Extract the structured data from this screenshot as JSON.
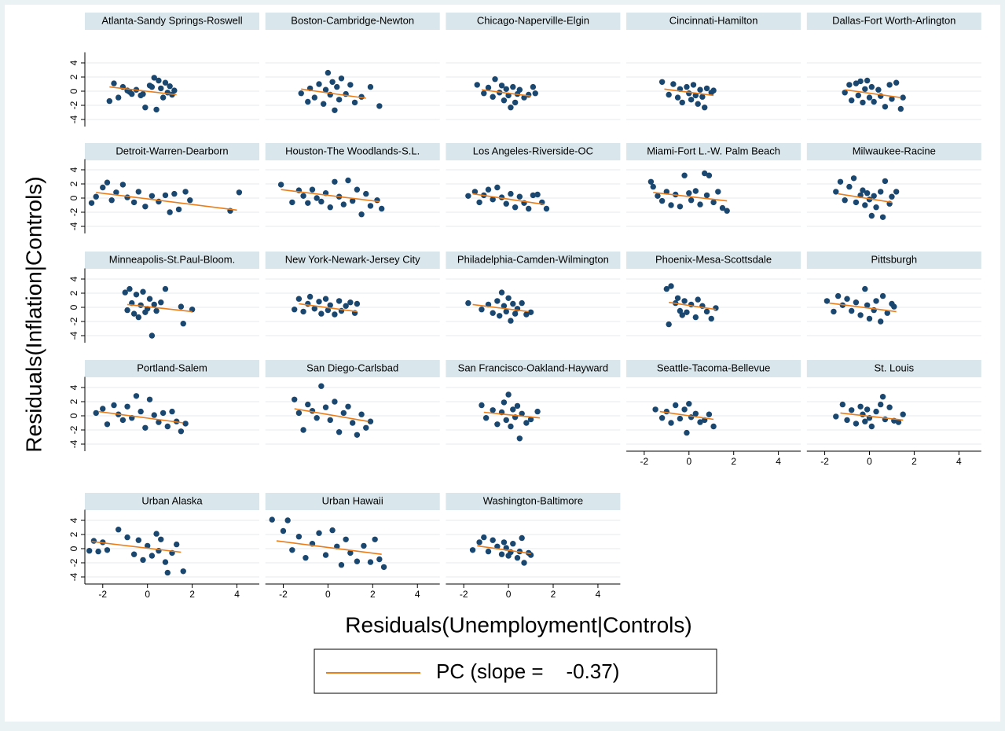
{
  "chart_data": {
    "type": "scatter",
    "ylabel": "Residuals(Inflation|Controls)",
    "xlabel": "Residuals(Unemployment|Controls)",
    "xlim": [
      -2.8,
      5
    ],
    "ylim": [
      -5,
      5.5
    ],
    "xticks": [
      -2,
      0,
      2,
      4
    ],
    "yticks": [
      -4,
      -2,
      0,
      2,
      4
    ],
    "grid": true,
    "point_color": "#1a476f",
    "fit_color": "#ea7d1a",
    "fit_label": "PC (slope =    -0.37)",
    "panels": [
      {
        "title": "Atlanta-Sandy Springs-Roswell",
        "x": [
          -1.7,
          -1.5,
          -1.3,
          -1.1,
          -0.9,
          -0.7,
          -0.5,
          -0.3,
          -0.1,
          0.1,
          0.3,
          0.4,
          0.5,
          0.6,
          0.7,
          0.8,
          0.9,
          1.0,
          1.1,
          1.2,
          -0.8,
          -0.2,
          0.2
        ],
        "y": [
          -1.4,
          1.1,
          -0.9,
          0.6,
          0.1,
          -0.4,
          0.2,
          -0.6,
          -2.3,
          0.8,
          1.9,
          -2.6,
          1.5,
          0.4,
          -0.9,
          1.2,
          -0.2,
          0.7,
          -0.5,
          0.1,
          -0.1,
          -0.4,
          0.6
        ],
        "fit_x": [
          -1.7,
          1.3
        ],
        "fit_y": [
          0.6,
          -0.5
        ]
      },
      {
        "title": "Boston-Cambridge-Newton",
        "x": [
          -1.2,
          -0.9,
          -0.8,
          -0.6,
          -0.4,
          -0.2,
          -0.1,
          0,
          0.1,
          0.2,
          0.3,
          0.4,
          0.5,
          0.6,
          0.8,
          1.0,
          1.2,
          1.5,
          1.9,
          2.3
        ],
        "y": [
          -0.3,
          -1.5,
          0.4,
          -0.9,
          1.0,
          -1.8,
          0.2,
          2.6,
          -0.5,
          1.3,
          -2.7,
          0.6,
          -1.2,
          1.8,
          -0.4,
          0.9,
          -1.6,
          -0.8,
          0.6,
          -2.1
        ],
        "fit_x": [
          -1.2,
          1.7
        ],
        "fit_y": [
          0.3,
          -1.0
        ]
      },
      {
        "title": "Chicago-Naperville-Elgin",
        "x": [
          -1.4,
          -1.1,
          -0.9,
          -0.7,
          -0.6,
          -0.4,
          -0.3,
          -0.2,
          -0.1,
          0,
          0.1,
          0.2,
          0.3,
          0.4,
          0.5,
          0.7,
          0.9,
          1.1,
          1.2
        ],
        "y": [
          0.9,
          -0.3,
          0.5,
          -0.8,
          1.7,
          -0.2,
          0.8,
          -1.3,
          0.3,
          -0.6,
          -2.3,
          0.6,
          -1.6,
          -0.4,
          0.2,
          -0.9,
          -0.5,
          0.6,
          -0.3
        ],
        "fit_x": [
          -1.2,
          1.0
        ],
        "fit_y": [
          0.2,
          -0.7
        ]
      },
      {
        "title": "Cincinnati-Hamilton",
        "x": [
          -1.2,
          -0.9,
          -0.7,
          -0.5,
          -0.4,
          -0.3,
          -0.1,
          0,
          0.1,
          0.2,
          0.3,
          0.4,
          0.5,
          0.6,
          0.7,
          0.8,
          1.0,
          1.1
        ],
        "y": [
          1.3,
          -0.5,
          1.0,
          -0.9,
          0.3,
          -1.6,
          0.6,
          -0.3,
          -1.2,
          0.9,
          -0.6,
          -1.8,
          0.2,
          -0.8,
          -2.3,
          0.4,
          -0.2,
          0.1
        ],
        "fit_x": [
          -1.1,
          1.1
        ],
        "fit_y": [
          0.3,
          -0.6
        ]
      },
      {
        "title": "Dallas-Fort Worth-Arlington",
        "x": [
          -1.1,
          -0.9,
          -0.8,
          -0.6,
          -0.5,
          -0.4,
          -0.3,
          -0.2,
          -0.1,
          0,
          0.1,
          0.2,
          0.4,
          0.5,
          0.7,
          0.9,
          1.0,
          1.2,
          1.4,
          1.5
        ],
        "y": [
          -0.2,
          0.9,
          -1.3,
          1.1,
          -0.6,
          1.4,
          -1.6,
          0.3,
          1.5,
          -0.9,
          0.6,
          -1.5,
          0.2,
          -0.7,
          -2.2,
          0.9,
          -1.1,
          1.2,
          -2.5,
          -0.9
        ],
        "fit_x": [
          -1.1,
          1.4
        ],
        "fit_y": [
          0.2,
          -0.9
        ]
      },
      {
        "title": "Detroit-Warren-Dearborn",
        "x": [
          -2.5,
          -2.3,
          -2.0,
          -1.8,
          -1.6,
          -1.4,
          -1.1,
          -0.9,
          -0.6,
          -0.4,
          -0.1,
          0.2,
          0.5,
          0.8,
          1.0,
          1.2,
          1.4,
          1.7,
          1.9,
          3.7,
          4.1
        ],
        "y": [
          -0.7,
          0.2,
          1.5,
          2.2,
          -0.3,
          0.8,
          1.9,
          0.1,
          -0.6,
          0.9,
          -1.2,
          0.3,
          -0.5,
          0.4,
          -2.0,
          0.6,
          -1.6,
          0.9,
          -0.3,
          -1.8,
          0.8
        ],
        "fit_x": [
          -2.3,
          4.0
        ],
        "fit_y": [
          0.8,
          -1.7
        ]
      },
      {
        "title": "Houston-The Woodlands-S.L.",
        "x": [
          -2.1,
          -1.6,
          -1.3,
          -1.1,
          -0.9,
          -0.7,
          -0.5,
          -0.3,
          -0.1,
          0.1,
          0.3,
          0.5,
          0.7,
          0.9,
          1.1,
          1.3,
          1.5,
          1.7,
          1.9,
          2.2,
          2.4
        ],
        "y": [
          1.9,
          -0.6,
          1.1,
          0.3,
          -0.7,
          1.2,
          0.0,
          -0.5,
          0.7,
          -1.3,
          2.3,
          0.2,
          -0.9,
          2.5,
          -0.4,
          1.2,
          -2.3,
          0.6,
          -1.1,
          -0.3,
          -1.5
        ],
        "fit_x": [
          -2.1,
          2.3
        ],
        "fit_y": [
          1.2,
          -0.5
        ]
      },
      {
        "title": "Los Angeles-Riverside-OC",
        "x": [
          -1.8,
          -1.5,
          -1.3,
          -1.1,
          -0.9,
          -0.7,
          -0.5,
          -0.3,
          -0.1,
          0.1,
          0.3,
          0.5,
          0.7,
          0.9,
          1.1,
          1.3,
          1.5,
          1.7
        ],
        "y": [
          0.3,
          0.9,
          -0.6,
          0.4,
          1.2,
          -0.2,
          1.5,
          0.1,
          -0.8,
          0.6,
          -1.3,
          0.2,
          -0.7,
          -1.5,
          0.4,
          0.5,
          -0.6,
          -1.5
        ],
        "fit_x": [
          -1.6,
          1.6
        ],
        "fit_y": [
          0.6,
          -0.9
        ]
      },
      {
        "title": "Miami-Fort L.-W. Palm Beach",
        "x": [
          -1.7,
          -1.6,
          -1.4,
          -1.2,
          -1.0,
          -0.8,
          -0.6,
          -0.4,
          -0.2,
          0,
          0.1,
          0.3,
          0.5,
          0.7,
          0.8,
          0.9,
          1.1,
          1.3,
          1.5,
          1.7
        ],
        "y": [
          2.3,
          1.6,
          0.3,
          -0.4,
          0.9,
          -1.0,
          0.5,
          -1.2,
          3.2,
          0.7,
          -0.3,
          1.0,
          -0.9,
          3.5,
          0.4,
          3.2,
          -0.6,
          0.9,
          -1.4,
          -1.8
        ],
        "fit_x": [
          -1.6,
          1.7
        ],
        "fit_y": [
          0.8,
          -0.4
        ]
      },
      {
        "title": "Milwaukee-Racine",
        "x": [
          -1.5,
          -1.3,
          -1.1,
          -0.9,
          -0.7,
          -0.6,
          -0.4,
          -0.3,
          -0.2,
          -0.1,
          0,
          0.1,
          0.2,
          0.3,
          0.5,
          0.6,
          0.7,
          0.9,
          1.0,
          1.2
        ],
        "y": [
          0.9,
          2.3,
          -0.3,
          1.6,
          2.8,
          -0.6,
          0.4,
          1.1,
          -1.0,
          0.7,
          -0.2,
          -2.5,
          0.3,
          -1.3,
          0.9,
          -2.7,
          2.4,
          -0.8,
          0.2,
          0.9
        ],
        "fit_x": [
          -1.4,
          1.0
        ],
        "fit_y": [
          0.6,
          -0.6
        ]
      },
      {
        "title": "Minneapolis-St.Paul-Bloom.",
        "x": [
          -1.0,
          -0.9,
          -0.8,
          -0.7,
          -0.6,
          -0.5,
          -0.4,
          -0.3,
          -0.2,
          -0.1,
          0,
          0.1,
          0.2,
          0.3,
          0.4,
          0.6,
          0.8,
          1.5,
          1.6,
          2.0
        ],
        "y": [
          2.1,
          -0.4,
          2.6,
          0.6,
          -0.9,
          1.8,
          -1.4,
          0.3,
          2.2,
          -0.7,
          -0.2,
          1.2,
          -4.0,
          0.4,
          -0.5,
          0.7,
          2.6,
          0.1,
          -2.3,
          -0.3
        ],
        "fit_x": [
          -0.9,
          2.0
        ],
        "fit_y": [
          0.4,
          -0.6
        ]
      },
      {
        "title": "New York-Newark-Jersey City",
        "x": [
          -1.5,
          -1.3,
          -1.1,
          -0.9,
          -0.8,
          -0.6,
          -0.4,
          -0.3,
          -0.1,
          0,
          0.1,
          0.3,
          0.5,
          0.6,
          0.8,
          1.0,
          1.2,
          1.3
        ],
        "y": [
          -0.3,
          1.2,
          -0.6,
          0.5,
          1.5,
          -0.2,
          0.8,
          -0.9,
          1.2,
          -0.4,
          0.3,
          -1.0,
          0.9,
          -0.5,
          0.2,
          0.7,
          -0.8,
          0.5
        ],
        "fit_x": [
          -1.3,
          1.3
        ],
        "fit_y": [
          0.5,
          -0.6
        ]
      },
      {
        "title": "Philadelphia-Camden-Wilmington",
        "x": [
          -1.8,
          -1.2,
          -0.9,
          -0.7,
          -0.5,
          -0.4,
          -0.3,
          -0.2,
          -0.1,
          0,
          0.1,
          0.2,
          0.3,
          0.4,
          0.6,
          0.8,
          1.0
        ],
        "y": [
          0.6,
          -0.3,
          0.4,
          -0.8,
          0.9,
          -1.2,
          2.1,
          0.2,
          -0.6,
          1.3,
          -1.9,
          0.5,
          -0.9,
          -0.2,
          0.6,
          -1.0,
          -0.7
        ],
        "fit_x": [
          -1.6,
          0.9
        ],
        "fit_y": [
          0.4,
          -0.6
        ]
      },
      {
        "title": "Phoenix-Mesa-Scottsdale",
        "x": [
          -1.0,
          -0.9,
          -0.8,
          -0.6,
          -0.5,
          -0.4,
          -0.3,
          -0.2,
          -0.1,
          0.1,
          0.3,
          0.4,
          0.6,
          0.8,
          1.0,
          1.2
        ],
        "y": [
          2.6,
          -2.4,
          3.0,
          0.6,
          1.3,
          -0.5,
          -1.1,
          0.9,
          -0.7,
          0.4,
          -1.4,
          1.1,
          0.2,
          -0.6,
          -1.6,
          -0.1
        ],
        "fit_x": [
          -0.9,
          1.2
        ],
        "fit_y": [
          0.7,
          -0.3
        ]
      },
      {
        "title": "Pittsburgh",
        "x": [
          -1.9,
          -1.6,
          -1.4,
          -1.2,
          -1.0,
          -0.8,
          -0.6,
          -0.4,
          -0.2,
          -0.1,
          0,
          0.2,
          0.3,
          0.5,
          0.6,
          0.8,
          1.0,
          1.1
        ],
        "y": [
          0.9,
          -0.6,
          1.6,
          0.3,
          1.2,
          -0.5,
          0.7,
          -1.1,
          2.6,
          0.3,
          -1.6,
          -0.4,
          0.9,
          -2.0,
          1.6,
          -0.8,
          0.5,
          0.1
        ],
        "fit_x": [
          -1.8,
          1.2
        ],
        "fit_y": [
          0.6,
          -0.6
        ]
      },
      {
        "title": "Portland-Salem",
        "x": [
          -2.3,
          -2.0,
          -1.8,
          -1.5,
          -1.3,
          -1.1,
          -0.9,
          -0.7,
          -0.5,
          -0.3,
          -0.1,
          0.1,
          0.3,
          0.5,
          0.7,
          0.9,
          1.1,
          1.3,
          1.5,
          1.7
        ],
        "y": [
          0.4,
          1.0,
          -1.2,
          1.5,
          0.2,
          -0.6,
          1.3,
          -0.3,
          2.8,
          0.6,
          -1.7,
          2.3,
          0.1,
          -0.9,
          0.4,
          -1.5,
          0.6,
          -0.8,
          -2.2,
          -1.1
        ],
        "fit_x": [
          -2.2,
          1.6
        ],
        "fit_y": [
          0.6,
          -1.0
        ]
      },
      {
        "title": "San Diego-Carlsbad",
        "x": [
          -1.5,
          -1.3,
          -1.1,
          -0.9,
          -0.7,
          -0.5,
          -0.3,
          -0.1,
          0.1,
          0.3,
          0.5,
          0.7,
          0.9,
          1.1,
          1.3,
          1.5,
          1.7,
          1.9
        ],
        "y": [
          2.3,
          0.4,
          -2.0,
          1.6,
          0.7,
          -0.3,
          4.2,
          1.2,
          -0.6,
          2.0,
          -2.3,
          0.4,
          1.3,
          -1.0,
          -2.7,
          0.2,
          -1.7,
          -0.8
        ],
        "fit_x": [
          -1.5,
          1.8
        ],
        "fit_y": [
          1.0,
          -0.8
        ]
      },
      {
        "title": "San Francisco-Oakland-Hayward",
        "x": [
          -1.2,
          -1.0,
          -0.7,
          -0.5,
          -0.3,
          -0.2,
          -0.1,
          0,
          0.1,
          0.2,
          0.3,
          0.4,
          0.5,
          0.6,
          0.8,
          1.0,
          1.3
        ],
        "y": [
          1.5,
          -0.3,
          0.8,
          -1.2,
          0.5,
          1.9,
          -0.6,
          3.0,
          -1.5,
          0.9,
          -0.2,
          1.4,
          -3.2,
          0.3,
          -1.0,
          -0.5,
          0.6
        ],
        "fit_x": [
          -1.1,
          1.4
        ],
        "fit_y": [
          0.5,
          -0.3
        ]
      },
      {
        "title": "Seattle-Tacoma-Bellevue",
        "x": [
          -1.5,
          -1.2,
          -1.0,
          -0.8,
          -0.6,
          -0.4,
          -0.2,
          -0.1,
          0,
          0.1,
          0.3,
          0.5,
          0.7,
          0.9,
          1.1
        ],
        "y": [
          0.9,
          -0.3,
          0.6,
          -1.0,
          1.5,
          -0.4,
          0.9,
          -2.4,
          1.7,
          -0.2,
          0.3,
          -0.9,
          -0.6,
          0.2,
          -1.5
        ],
        "fit_x": [
          -1.3,
          1.1
        ],
        "fit_y": [
          0.6,
          -0.5
        ]
      },
      {
        "title": "St. Louis",
        "x": [
          -1.5,
          -1.2,
          -1.0,
          -0.8,
          -0.6,
          -0.4,
          -0.3,
          -0.2,
          -0.1,
          0,
          0.1,
          0.3,
          0.5,
          0.6,
          0.7,
          0.9,
          1.1,
          1.3,
          1.5
        ],
        "y": [
          -0.1,
          1.6,
          -0.6,
          0.8,
          -1.1,
          1.3,
          0.2,
          -0.8,
          0.9,
          -0.3,
          -1.5,
          0.6,
          1.6,
          2.7,
          -0.5,
          1.2,
          -0.7,
          -0.9,
          0.2
        ],
        "fit_x": [
          -1.3,
          1.5
        ],
        "fit_y": [
          0.4,
          -0.6
        ]
      },
      {
        "title": "Urban Alaska",
        "x": [
          -2.6,
          -2.4,
          -2.2,
          -2.0,
          -1.8,
          -1.3,
          -0.9,
          -0.6,
          -0.4,
          -0.2,
          0,
          0.2,
          0.4,
          0.5,
          0.6,
          0.8,
          0.9,
          1.1,
          1.3,
          1.6
        ],
        "y": [
          -0.3,
          1.1,
          -0.4,
          0.9,
          -0.2,
          2.7,
          1.6,
          -0.8,
          1.2,
          -1.6,
          0.4,
          -1.0,
          2.1,
          -0.3,
          1.3,
          -1.9,
          -3.4,
          -0.6,
          0.6,
          -3.2
        ],
        "fit_x": [
          -2.5,
          1.5
        ],
        "fit_y": [
          1.0,
          -0.5
        ]
      },
      {
        "title": "Urban Hawaii",
        "x": [
          -2.5,
          -2.0,
          -1.8,
          -1.6,
          -1.3,
          -1.0,
          -0.7,
          -0.4,
          -0.1,
          0.2,
          0.4,
          0.6,
          0.8,
          1.0,
          1.3,
          1.6,
          1.9,
          2.1,
          2.3,
          2.5
        ],
        "y": [
          4.1,
          2.5,
          4.0,
          -0.2,
          1.7,
          -1.3,
          0.7,
          2.2,
          -0.9,
          2.6,
          0.3,
          -2.3,
          1.3,
          -0.6,
          -1.8,
          0.4,
          -1.9,
          1.3,
          -1.5,
          -2.6
        ],
        "fit_x": [
          -2.3,
          2.4
        ],
        "fit_y": [
          1.1,
          -0.8
        ]
      },
      {
        "title": "Washington-Baltimore",
        "x": [
          -1.6,
          -1.3,
          -1.1,
          -0.9,
          -0.7,
          -0.5,
          -0.3,
          -0.2,
          -0.1,
          0,
          0.1,
          0.2,
          0.4,
          0.5,
          0.6,
          0.7,
          0.9,
          1.0
        ],
        "y": [
          -0.2,
          0.9,
          1.6,
          -0.4,
          1.2,
          0.3,
          -0.8,
          0.9,
          0.1,
          -1.0,
          -0.5,
          0.7,
          -1.3,
          -0.4,
          1.5,
          -2.0,
          -0.6,
          -0.9
        ],
        "fit_x": [
          -1.4,
          1.0
        ],
        "fit_y": [
          0.4,
          -0.7
        ]
      }
    ]
  }
}
